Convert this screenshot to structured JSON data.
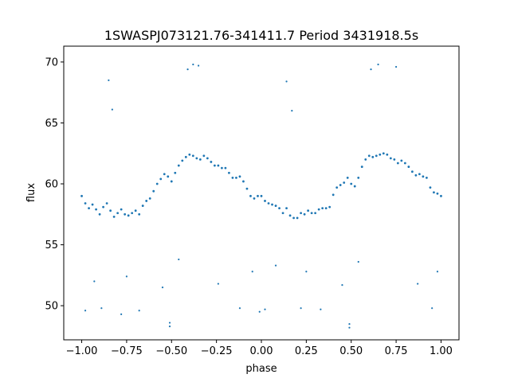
{
  "chart_data": {
    "type": "scatter",
    "title": "1SWASPJ073121.76-341411.7 Period 3431918.5s",
    "xlabel": "phase",
    "ylabel": "flux",
    "xlim": [
      -1.1,
      1.1
    ],
    "ylim": [
      47.2,
      71.3
    ],
    "xticks": [
      -1.0,
      -0.75,
      -0.5,
      -0.25,
      0.0,
      0.25,
      0.5,
      0.75,
      1.0
    ],
    "xtick_labels": [
      "−1.00",
      "−0.75",
      "−0.50",
      "−0.25",
      "0.00",
      "0.25",
      "0.50",
      "0.75",
      "1.00"
    ],
    "yticks": [
      50,
      55,
      60,
      65,
      70
    ],
    "ytick_labels": [
      "50",
      "55",
      "60",
      "65",
      "70"
    ],
    "grid": false,
    "legend": "none",
    "marker_color": "#1f77b4",
    "series": [
      {
        "x": [
          -1.0,
          -0.98,
          -0.96,
          -0.94,
          -0.92,
          -0.9,
          -0.88,
          -0.86,
          -0.84,
          -0.82,
          -0.8,
          -0.78,
          -0.76,
          -0.74,
          -0.72,
          -0.7,
          -0.68,
          -0.66,
          -0.64,
          -0.62,
          -0.6,
          -0.58,
          -0.56,
          -0.54,
          -0.52,
          -0.5,
          -0.48,
          -0.46,
          -0.44,
          -0.42,
          -0.4,
          -0.38,
          -0.36,
          -0.34,
          -0.32,
          -0.3,
          -0.28,
          -0.26,
          -0.24,
          -0.22,
          -0.2,
          -0.18,
          -0.16,
          -0.14,
          -0.12,
          -0.1,
          -0.08,
          -0.06,
          -0.04,
          -0.02,
          0.0,
          0.02,
          0.04,
          0.06,
          0.08,
          0.1,
          0.12,
          0.14,
          0.16,
          0.18,
          0.2,
          0.22,
          0.24,
          0.26,
          0.28,
          0.3,
          0.32,
          0.34,
          0.36,
          0.38,
          0.4,
          0.42,
          0.44,
          0.46,
          0.48,
          0.5,
          0.52,
          0.54,
          0.56,
          0.58,
          0.6,
          0.62,
          0.64,
          0.66,
          0.68,
          0.7,
          0.72,
          0.74,
          0.76,
          0.78,
          0.8,
          0.82,
          0.84,
          0.86,
          0.88,
          0.9,
          0.92,
          0.94,
          0.96,
          0.98,
          1.0
        ],
        "y": [
          59.0,
          58.4,
          58.0,
          58.3,
          57.9,
          57.5,
          58.1,
          58.4,
          57.8,
          57.3,
          57.6,
          57.9,
          57.5,
          57.4,
          57.6,
          57.8,
          57.5,
          58.2,
          58.6,
          58.8,
          59.4,
          60.0,
          60.4,
          60.8,
          60.6,
          60.2,
          60.9,
          61.5,
          61.9,
          62.2,
          62.4,
          62.3,
          62.1,
          62.0,
          62.3,
          62.1,
          61.8,
          61.5,
          61.5,
          61.3,
          61.3,
          60.9,
          60.5,
          60.5,
          60.6,
          60.2,
          59.6,
          59.0,
          58.8,
          59.0,
          59.0,
          58.6,
          58.4,
          58.3,
          58.2,
          58.0,
          57.6,
          58.0,
          57.4,
          57.2,
          57.2,
          57.6,
          57.5,
          57.8,
          57.6,
          57.6,
          57.9,
          58.0,
          58.0,
          58.1,
          59.1,
          59.7,
          59.9,
          60.1,
          60.5,
          60.0,
          59.8,
          60.5,
          61.4,
          62.0,
          62.3,
          62.2,
          62.3,
          62.4,
          62.5,
          62.4,
          62.1,
          62.0,
          61.7,
          61.9,
          61.7,
          61.4,
          61.0,
          60.7,
          60.8,
          60.6,
          60.5,
          59.7,
          59.3,
          59.2,
          59.0
        ]
      }
    ],
    "outliers": {
      "x": [
        -0.98,
        -0.93,
        -0.89,
        -0.85,
        -0.83,
        -0.78,
        -0.75,
        -0.68,
        -0.55,
        -0.51,
        -0.51,
        -0.46,
        -0.41,
        -0.38,
        -0.35,
        -0.24,
        -0.12,
        -0.05,
        -0.01,
        0.02,
        0.08,
        0.14,
        0.17,
        0.22,
        0.25,
        0.33,
        0.45,
        0.49,
        0.49,
        0.54,
        0.61,
        0.65,
        0.75,
        0.87,
        0.95,
        0.98
      ],
      "y": [
        49.6,
        52.0,
        49.8,
        68.5,
        66.1,
        49.3,
        52.4,
        49.6,
        51.5,
        48.6,
        48.3,
        53.8,
        69.4,
        69.8,
        69.7,
        51.8,
        49.8,
        52.8,
        49.5,
        49.7,
        53.3,
        68.4,
        66.0,
        49.8,
        52.8,
        49.7,
        51.7,
        48.5,
        48.2,
        53.6,
        69.4,
        69.8,
        69.6,
        51.8,
        49.8,
        52.8
      ]
    }
  }
}
